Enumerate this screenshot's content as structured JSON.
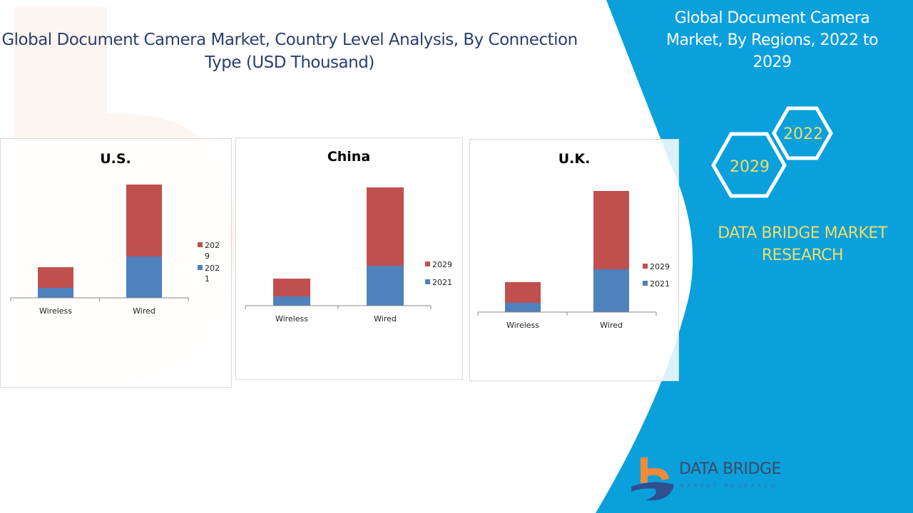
{
  "main_title": "Global Document Camera Market, Country Level Analysis, By Connection Type (USD Thousand)",
  "side_panel": {
    "title": "Global Document Camera Market, By Regions, 2022 to 2029",
    "hex_badges": [
      "2022",
      "2029"
    ],
    "brand": "DATA BRIDGE MARKET RESEARCH"
  },
  "logo": {
    "name": "DATA BRIDGE",
    "tagline": "MARKET RESEARCH"
  },
  "colors": {
    "series_2021": "#4f81bd",
    "series_2029": "#c0504d",
    "panel_blue": "#0aa0dc",
    "accent_yellow": "#f2dc6a"
  },
  "chart_data": [
    {
      "type": "bar",
      "stacked": true,
      "title": "U.S.",
      "categories": [
        "Wireless",
        "Wired"
      ],
      "series": [
        {
          "name": "2021",
          "values": [
            14,
            58
          ]
        },
        {
          "name": "2029",
          "values": [
            29,
            101
          ]
        }
      ],
      "legend_labels": [
        "202\n9",
        "202\n1"
      ],
      "legend": "right",
      "grid": false,
      "y_axis": "hidden (relative values)"
    },
    {
      "type": "bar",
      "stacked": true,
      "title": "China",
      "categories": [
        "Wireless",
        "Wired"
      ],
      "series": [
        {
          "name": "2021",
          "values": [
            13,
            56
          ]
        },
        {
          "name": "2029",
          "values": [
            25,
            110
          ]
        }
      ],
      "legend_labels": [
        "2029",
        "2021"
      ],
      "legend": "right",
      "grid": false,
      "y_axis": "hidden (relative values)"
    },
    {
      "type": "bar",
      "stacked": true,
      "title": "U.K.",
      "categories": [
        "Wireless",
        "Wired"
      ],
      "series": [
        {
          "name": "2021",
          "values": [
            13,
            60
          ]
        },
        {
          "name": "2029",
          "values": [
            29,
            110
          ]
        }
      ],
      "legend_labels": [
        "2029",
        "2021"
      ],
      "legend": "right",
      "grid": false,
      "y_axis": "hidden (relative values)"
    }
  ]
}
